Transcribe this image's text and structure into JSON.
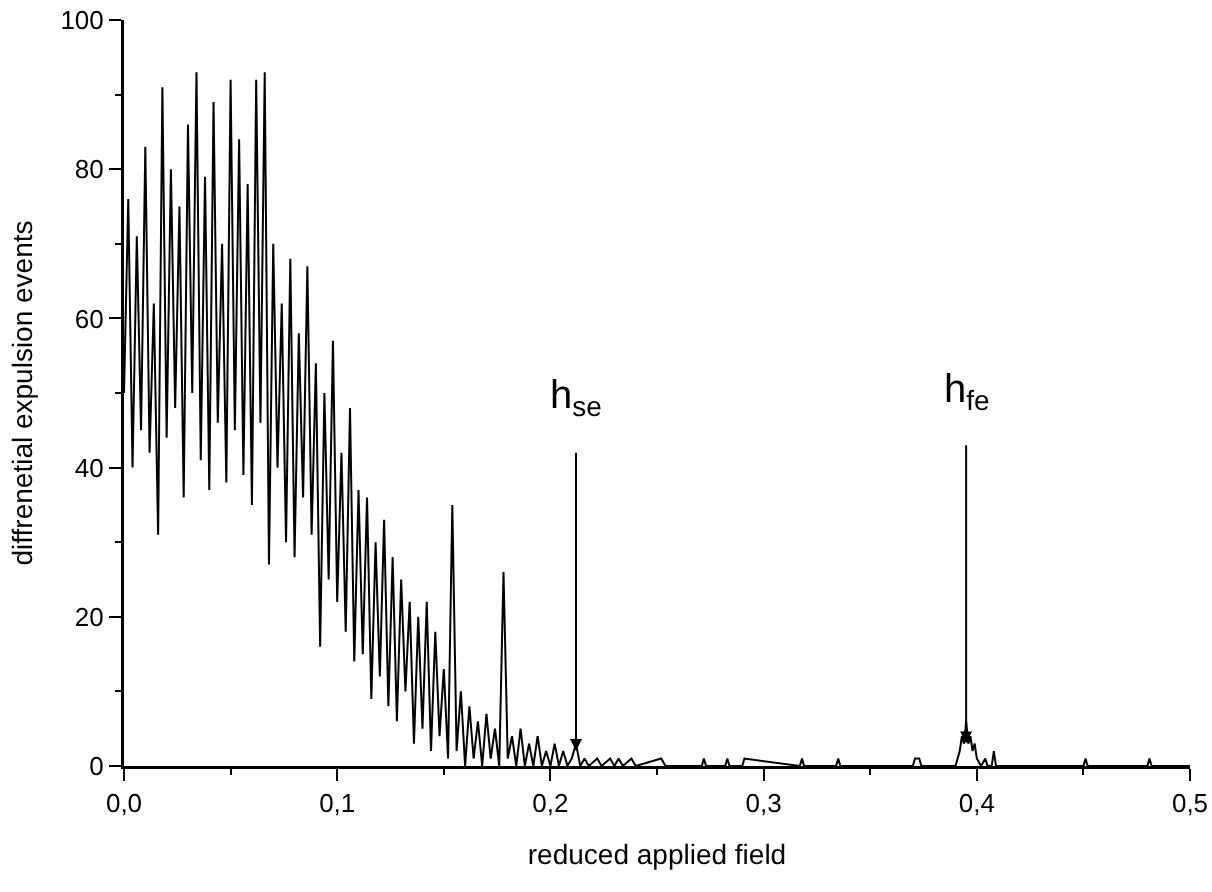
{
  "chart_data": {
    "type": "line",
    "xlabel": "reduced applied field",
    "ylabel": "diffrenetial expulsion events",
    "x": [
      0,
      0.002,
      0.004,
      0.006,
      0.008,
      0.01,
      0.012,
      0.014,
      0.016,
      0.018,
      0.02,
      0.022,
      0.024,
      0.026,
      0.028,
      0.03,
      0.032,
      0.034,
      0.036,
      0.038,
      0.04,
      0.042,
      0.044,
      0.046,
      0.048,
      0.05,
      0.052,
      0.054,
      0.056,
      0.058,
      0.06,
      0.062,
      0.064,
      0.066,
      0.068,
      0.07,
      0.072,
      0.074,
      0.076,
      0.078,
      0.08,
      0.082,
      0.084,
      0.086,
      0.088,
      0.09,
      0.092,
      0.094,
      0.096,
      0.098,
      0.1,
      0.102,
      0.104,
      0.106,
      0.108,
      0.11,
      0.112,
      0.114,
      0.116,
      0.118,
      0.12,
      0.122,
      0.124,
      0.126,
      0.128,
      0.13,
      0.132,
      0.134,
      0.136,
      0.138,
      0.14,
      0.142,
      0.144,
      0.146,
      0.148,
      0.15,
      0.152,
      0.154,
      0.156,
      0.158,
      0.16,
      0.162,
      0.164,
      0.166,
      0.168,
      0.17,
      0.172,
      0.174,
      0.176,
      0.178,
      0.18,
      0.182,
      0.184,
      0.186,
      0.188,
      0.19,
      0.192,
      0.194,
      0.196,
      0.198,
      0.2,
      0.202,
      0.204,
      0.206,
      0.208,
      0.21,
      0.212,
      0.214,
      0.216,
      0.218,
      0.222,
      0.224,
      0.228,
      0.23,
      0.232,
      0.234,
      0.238,
      0.24,
      0.252,
      0.254,
      0.271,
      0.272,
      0.273,
      0.282,
      0.283,
      0.284,
      0.29,
      0.291,
      0.317,
      0.318,
      0.319,
      0.334,
      0.335,
      0.336,
      0.37,
      0.371,
      0.373,
      0.374,
      0.39,
      0.392,
      0.393,
      0.394,
      0.395,
      0.396,
      0.397,
      0.398,
      0.399,
      0.4,
      0.402,
      0.404,
      0.405,
      0.407,
      0.408,
      0.409,
      0.45,
      0.451,
      0.452,
      0.48,
      0.481,
      0.482,
      0.5
    ],
    "series": [
      {
        "color": "#000000",
        "values": [
          50,
          76,
          40,
          71,
          45,
          83,
          42,
          62,
          31,
          91,
          44,
          80,
          48,
          75,
          36,
          86,
          50,
          93,
          41,
          79,
          37,
          89,
          46,
          70,
          38,
          92,
          45,
          84,
          39,
          78,
          35,
          92,
          46,
          93,
          27,
          70,
          40,
          62,
          30,
          68,
          28,
          58,
          36,
          67,
          31,
          54,
          16,
          50,
          25,
          57,
          22,
          42,
          18,
          48,
          14,
          37,
          15,
          36,
          9,
          30,
          12,
          33,
          8,
          28,
          6,
          25,
          10,
          22,
          3,
          20,
          5,
          22,
          2,
          18,
          4,
          13,
          1,
          35,
          2,
          10,
          0,
          8,
          1,
          6,
          0,
          7,
          1,
          5,
          0,
          26,
          1,
          4,
          0,
          5,
          0,
          3,
          0,
          4,
          0,
          2,
          0,
          3,
          0,
          2,
          0,
          1,
          3,
          0,
          1,
          0,
          1,
          0,
          1,
          0,
          1,
          0,
          1,
          0,
          1,
          0,
          0,
          1,
          0,
          0,
          1,
          0,
          0,
          1,
          0,
          1,
          0,
          0,
          1,
          0,
          0,
          1,
          1,
          0,
          0,
          2,
          4,
          3,
          6,
          3,
          4,
          2,
          3,
          1,
          0,
          1,
          0,
          0,
          2,
          0,
          0,
          1,
          0,
          0,
          1,
          0,
          0
        ]
      }
    ],
    "xlim": [
      0,
      0.5
    ],
    "ylim": [
      0,
      100
    ],
    "xticks": [
      {
        "value": 0,
        "label": "0,0"
      },
      {
        "value": 0.1,
        "label": "0,1"
      },
      {
        "value": 0.2,
        "label": "0,2"
      },
      {
        "value": 0.3,
        "label": "0,3"
      },
      {
        "value": 0.4,
        "label": "0,4"
      },
      {
        "value": 0.5,
        "label": "0,5"
      }
    ],
    "yticks": [
      0,
      20,
      40,
      60,
      80,
      100
    ],
    "grid": false,
    "marker": "none",
    "line_style": "solid",
    "annotations": [
      {
        "text": "h$_{se}$",
        "x": 0.212,
        "y": 2
      },
      {
        "text": "h$_{fe}$",
        "x": 0.395,
        "y": 3
      }
    ]
  }
}
